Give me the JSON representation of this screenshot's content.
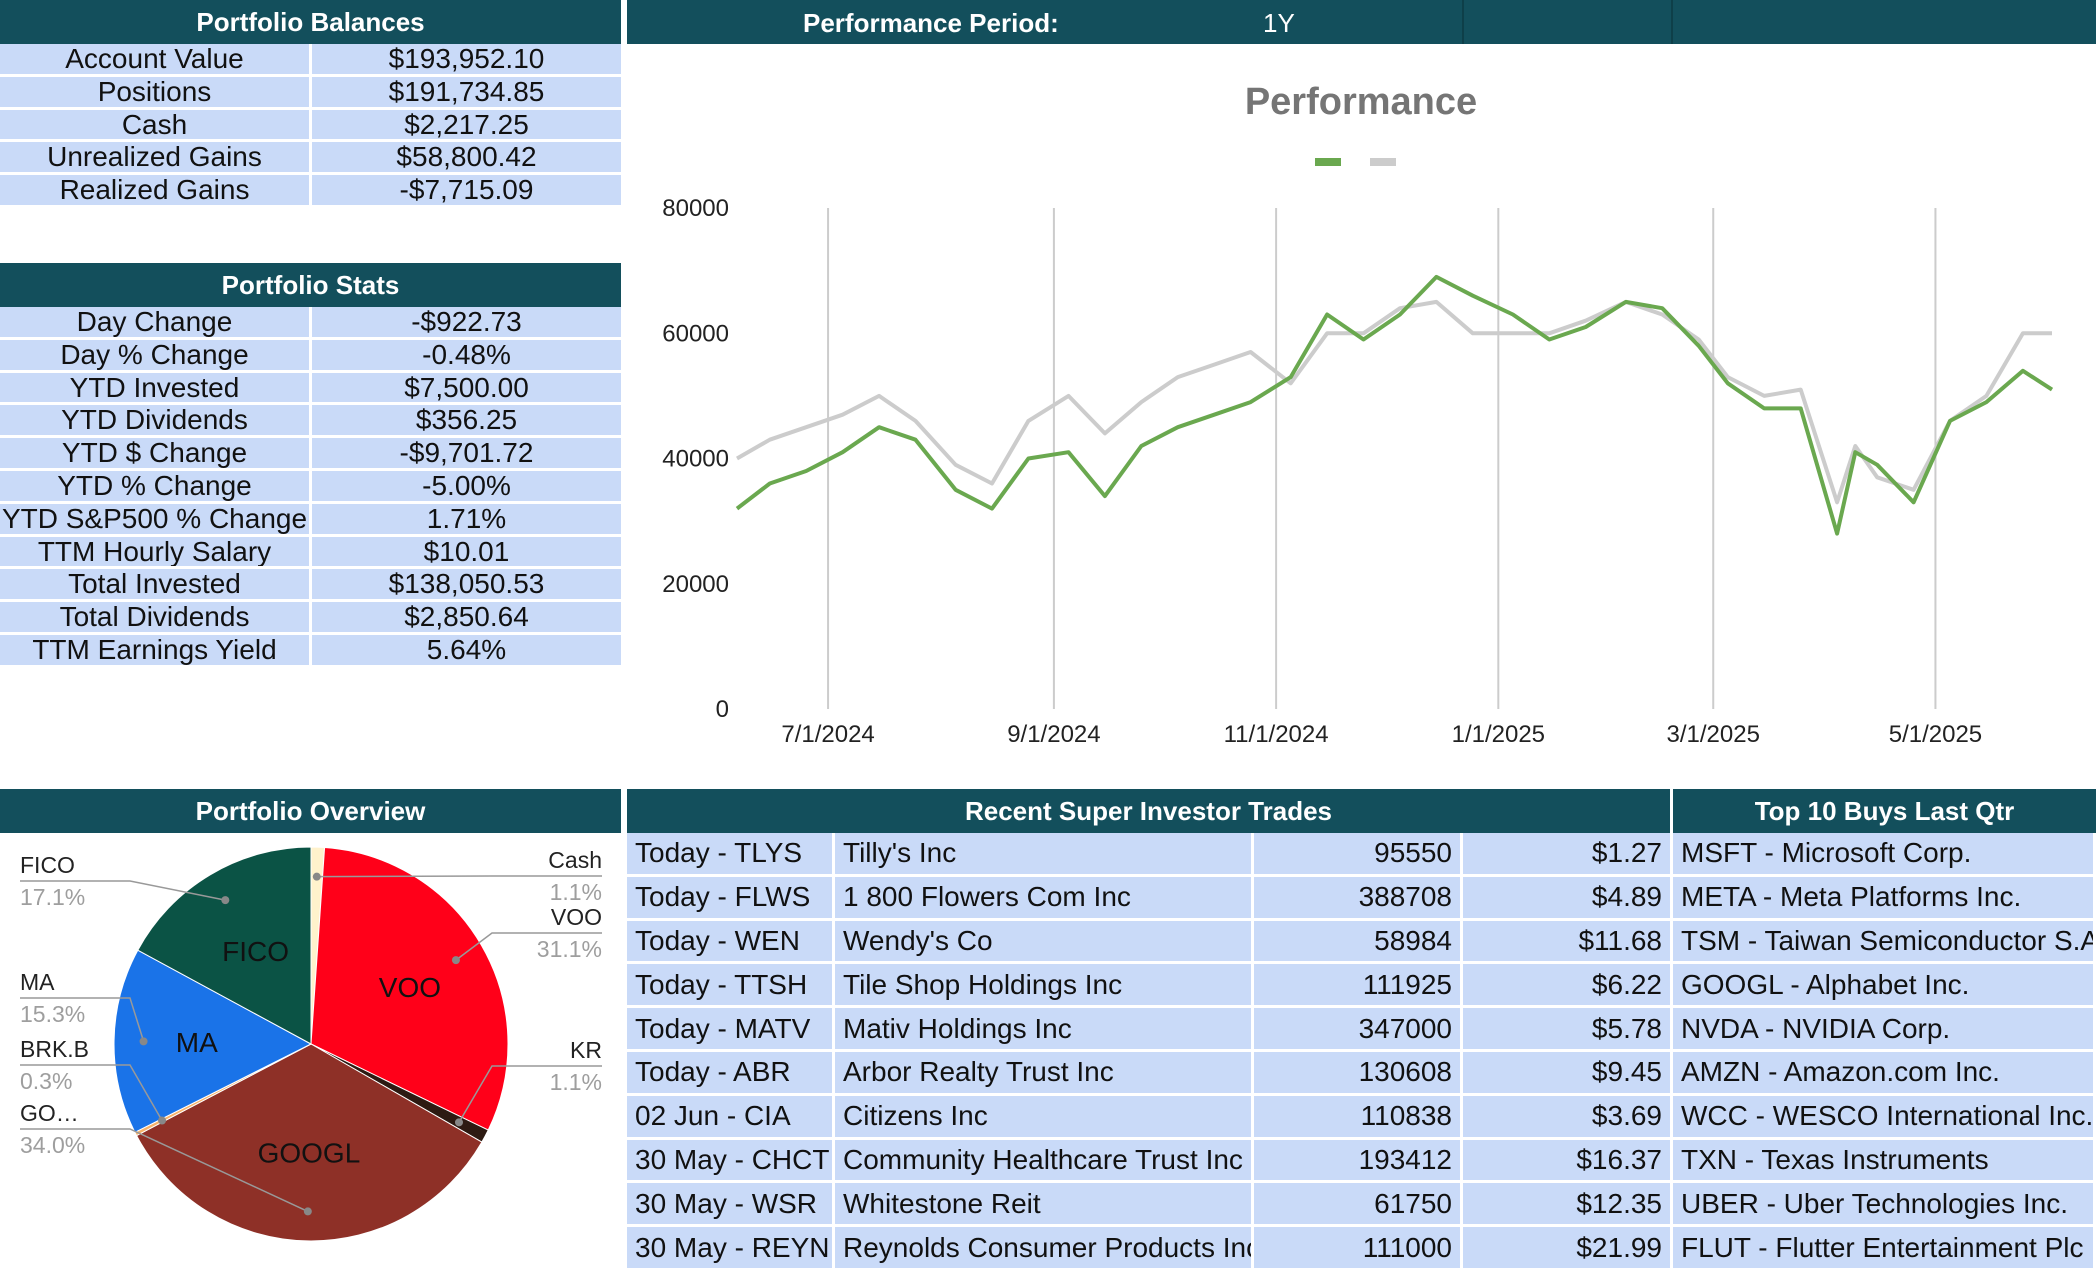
{
  "balances": {
    "header": "Portfolio Balances",
    "rows": [
      {
        "label": "Account Value",
        "value": "$193,952.10"
      },
      {
        "label": "Positions",
        "value": "$191,734.85"
      },
      {
        "label": "Cash",
        "value": "$2,217.25"
      },
      {
        "label": "Unrealized Gains",
        "value": "$58,800.42"
      },
      {
        "label": "Realized Gains",
        "value": "-$7,715.09"
      }
    ]
  },
  "stats": {
    "header": "Portfolio Stats",
    "rows": [
      {
        "label": "Day Change",
        "value": "-$922.73"
      },
      {
        "label": "Day % Change",
        "value": "-0.48%"
      },
      {
        "label": "YTD Invested",
        "value": "$7,500.00"
      },
      {
        "label": "YTD Dividends",
        "value": "$356.25"
      },
      {
        "label": "YTD $ Change",
        "value": "-$9,701.72"
      },
      {
        "label": "YTD % Change",
        "value": "-5.00%"
      },
      {
        "label": "YTD S&P500 % Change",
        "value": "1.71%"
      },
      {
        "label": "TTM Hourly Salary",
        "value": "$10.01"
      },
      {
        "label": "Total Invested",
        "value": "$138,050.53"
      },
      {
        "label": "Total Dividends",
        "value": "$2,850.64"
      },
      {
        "label": "TTM Earnings Yield",
        "value": "5.64%"
      }
    ]
  },
  "performance_period": {
    "label": "Performance Period:",
    "value": "1Y"
  },
  "chart_data": {
    "type": "line",
    "title": "Performance",
    "xlabel": "",
    "ylabel": "",
    "ylim": [
      0,
      80000
    ],
    "yticks": [
      "80000",
      "60000",
      "40000",
      "20000",
      "0"
    ],
    "xticks": [
      "7/1/2024",
      "9/1/2024",
      "11/1/2024",
      "1/1/2025",
      "3/1/2025",
      "5/1/2025"
    ],
    "legend": "top-center",
    "grid": "vertical",
    "colors": [
      "#6aa84f",
      "#cccccc"
    ],
    "series": [
      {
        "x": [
          "2024-06-06",
          "2024-06-15",
          "2024-06-25",
          "2024-07-05",
          "2024-07-15",
          "2024-07-25",
          "2024-08-05",
          "2024-08-15",
          "2024-08-25",
          "2024-09-05",
          "2024-09-15",
          "2024-09-25",
          "2024-10-05",
          "2024-10-15",
          "2024-10-25",
          "2024-11-05",
          "2024-11-15",
          "2024-11-25",
          "2024-12-05",
          "2024-12-15",
          "2024-12-25",
          "2025-01-05",
          "2025-01-15",
          "2025-01-25",
          "2025-02-05",
          "2025-02-15",
          "2025-02-25",
          "2025-03-05",
          "2025-03-15",
          "2025-03-25",
          "2025-04-04",
          "2025-04-09",
          "2025-04-15",
          "2025-04-25",
          "2025-05-05",
          "2025-05-15",
          "2025-05-25",
          "2025-06-02"
        ],
        "values": [
          32000,
          36000,
          38000,
          41000,
          45000,
          43000,
          35000,
          32000,
          40000,
          41000,
          34000,
          42000,
          45000,
          47000,
          49000,
          53000,
          63000,
          59000,
          63000,
          69000,
          66000,
          63000,
          59000,
          61000,
          65000,
          64000,
          58000,
          52000,
          48000,
          48000,
          28000,
          41000,
          39000,
          33000,
          46000,
          49000,
          54000,
          51000
        ]
      },
      {
        "x": [
          "2024-06-06",
          "2024-06-15",
          "2024-06-25",
          "2024-07-05",
          "2024-07-15",
          "2024-07-25",
          "2024-08-05",
          "2024-08-15",
          "2024-08-25",
          "2024-09-05",
          "2024-09-15",
          "2024-09-25",
          "2024-10-05",
          "2024-10-15",
          "2024-10-25",
          "2024-11-05",
          "2024-11-15",
          "2024-11-25",
          "2024-12-05",
          "2024-12-15",
          "2024-12-25",
          "2025-01-05",
          "2025-01-15",
          "2025-01-25",
          "2025-02-05",
          "2025-02-15",
          "2025-02-25",
          "2025-03-05",
          "2025-03-15",
          "2025-03-25",
          "2025-04-04",
          "2025-04-09",
          "2025-04-15",
          "2025-04-25",
          "2025-05-05",
          "2025-05-15",
          "2025-05-25",
          "2025-06-02"
        ],
        "values": [
          40000,
          43000,
          45000,
          47000,
          50000,
          46000,
          39000,
          36000,
          46000,
          50000,
          44000,
          49000,
          53000,
          55000,
          57000,
          52000,
          60000,
          60000,
          64000,
          65000,
          60000,
          60000,
          60000,
          62000,
          65000,
          63000,
          59000,
          53000,
          50000,
          51000,
          33000,
          42000,
          37000,
          35000,
          46000,
          50000,
          60000,
          60000
        ]
      }
    ]
  },
  "overview": {
    "header": "Portfolio Overview",
    "chart_data": {
      "type": "pie",
      "slices": [
        {
          "label": "Cash",
          "value": 1.1,
          "pct": "1.1%",
          "color": "#fff2cc"
        },
        {
          "label": "VOO",
          "value": 31.1,
          "pct": "31.1%",
          "color": "#ff0019"
        },
        {
          "label": "KR",
          "value": 1.1,
          "pct": "1.1%",
          "color": "#2d1a12"
        },
        {
          "label": "GOOGL",
          "value": 34.0,
          "pct": "34.0%",
          "color": "#8e3027"
        },
        {
          "label": "BRK.B",
          "value": 0.3,
          "pct": "0.3%",
          "color": "#f6b26b"
        },
        {
          "label": "MA",
          "value": 15.3,
          "pct": "15.3%",
          "color": "#1a73e8"
        },
        {
          "label": "FICO",
          "value": 17.1,
          "pct": "17.1%",
          "color": "#0b5345"
        }
      ],
      "callouts": [
        {
          "name": "FICO",
          "pct": "17.1%"
        },
        {
          "name": "MA",
          "pct": "15.3%"
        },
        {
          "name": "BRK.B",
          "pct": "0.3%"
        },
        {
          "name": "GO…",
          "pct": "34.0%"
        },
        {
          "name": "Cash",
          "pct": "1.1%"
        },
        {
          "name": "VOO",
          "pct": "31.1%"
        },
        {
          "name": "KR",
          "pct": "1.1%"
        }
      ],
      "inline_labels": [
        "FICO",
        "VOO",
        "MA",
        "GOOGL"
      ]
    }
  },
  "trades": {
    "header": "Recent Super Investor Trades",
    "rows": [
      {
        "when": "Today - TLYS",
        "company": "Tilly's Inc",
        "shares": "95550",
        "price": "$1.27"
      },
      {
        "when": "Today - FLWS",
        "company": "1 800 Flowers Com Inc",
        "shares": "388708",
        "price": "$4.89"
      },
      {
        "when": "Today - WEN",
        "company": "Wendy's Co",
        "shares": "58984",
        "price": "$11.68"
      },
      {
        "when": "Today - TTSH",
        "company": "Tile Shop Holdings Inc",
        "shares": "111925",
        "price": "$6.22"
      },
      {
        "when": "Today - MATV",
        "company": "Mativ Holdings Inc",
        "shares": "347000",
        "price": "$5.78"
      },
      {
        "when": "Today - ABR",
        "company": "Arbor Realty Trust Inc",
        "shares": "130608",
        "price": "$9.45"
      },
      {
        "when": "02 Jun - CIA",
        "company": "Citizens Inc",
        "shares": "110838",
        "price": "$3.69"
      },
      {
        "when": "30 May - CHCT",
        "company": "Community Healthcare Trust Inc",
        "shares": "193412",
        "price": "$16.37"
      },
      {
        "when": "30 May - WSR",
        "company": "Whitestone Reit",
        "shares": "61750",
        "price": "$12.35"
      },
      {
        "when": "30 May - REYN",
        "company": "Reynolds Consumer Products Inc",
        "shares": "111000",
        "price": "$21.99"
      }
    ]
  },
  "top_buys": {
    "header": "Top 10 Buys Last Qtr",
    "rows": [
      "MSFT - Microsoft Corp.",
      "META - Meta Platforms Inc.",
      "TSM - Taiwan Semiconductor S.A.",
      "GOOGL - Alphabet Inc.",
      "NVDA - NVIDIA Corp.",
      "AMZN - Amazon.com Inc.",
      "WCC - WESCO International Inc.",
      "TXN - Texas Instruments",
      "UBER - Uber Technologies Inc.",
      "FLUT - Flutter Entertainment Plc"
    ]
  }
}
